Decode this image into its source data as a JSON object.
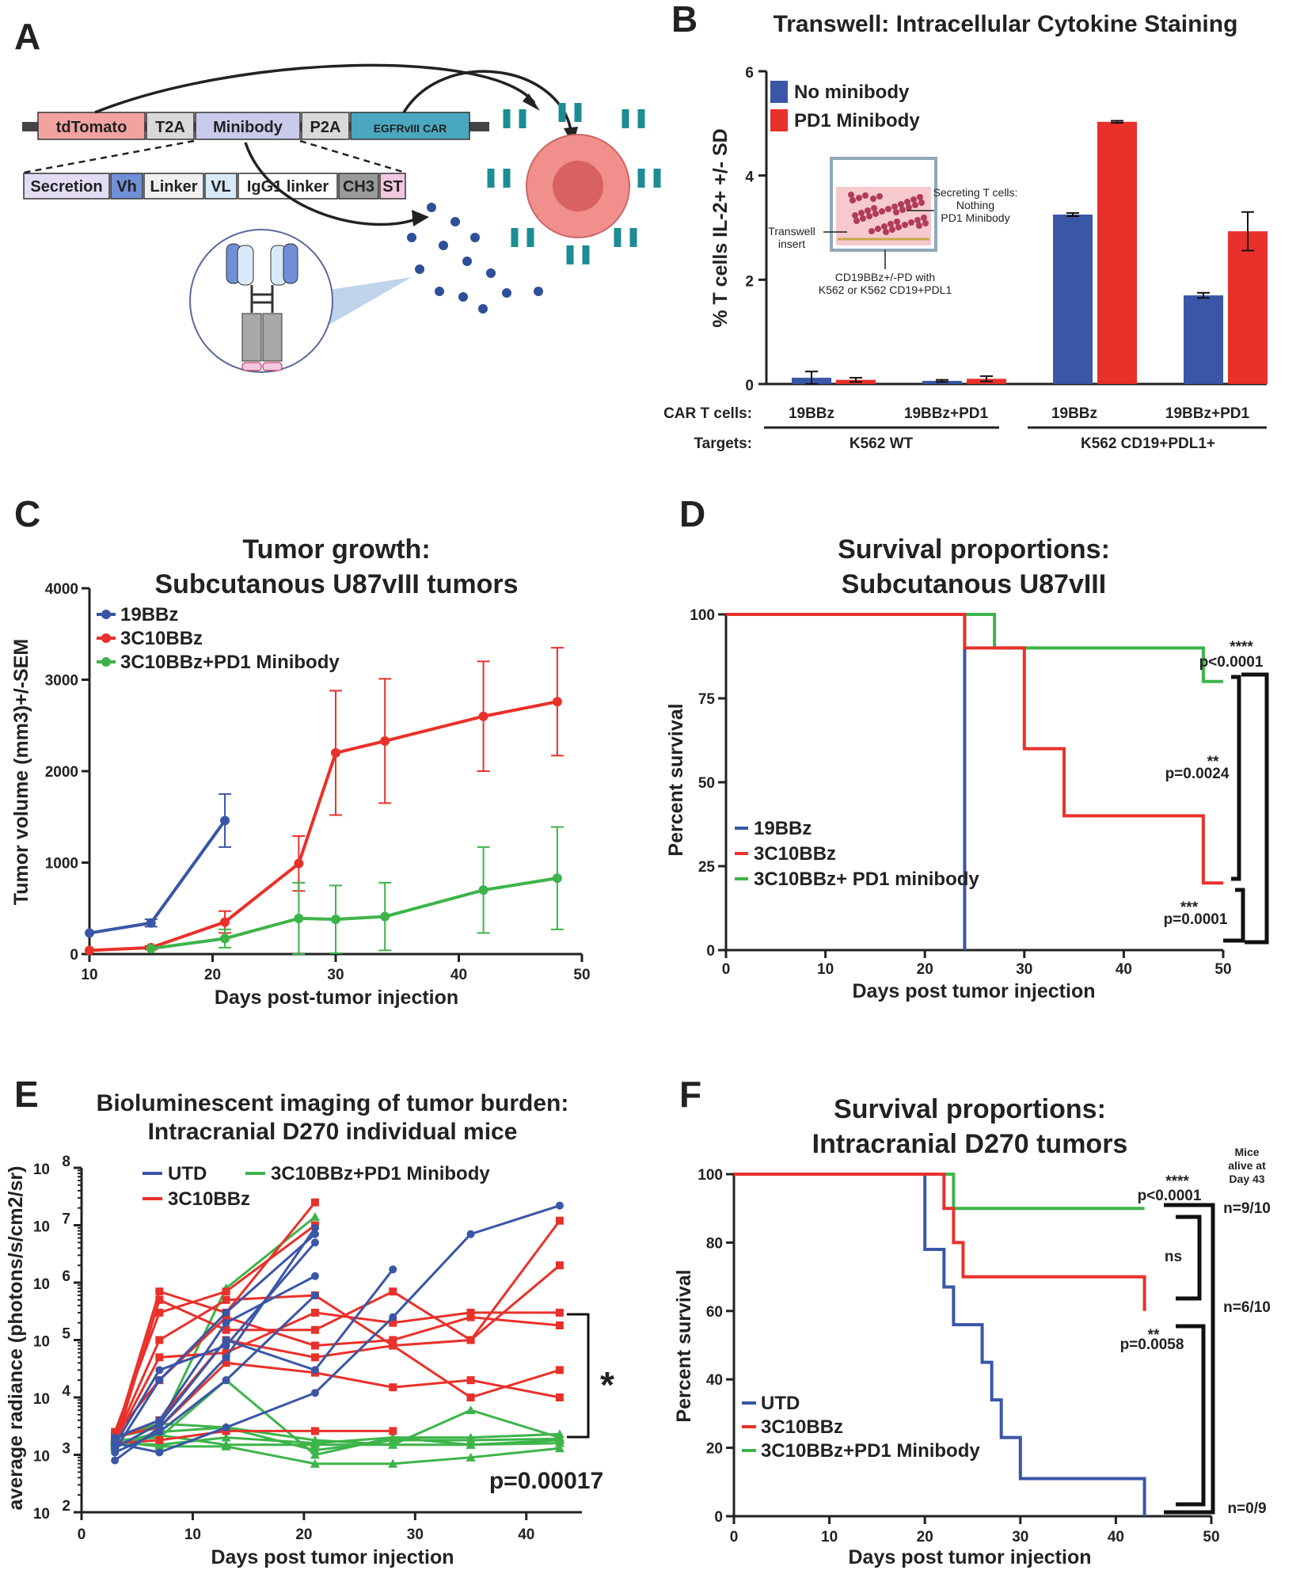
{
  "colors": {
    "blue": "#3a56a6",
    "red": "#e8312a",
    "green": "#3db44a",
    "gray": "#555555"
  },
  "panelA": {
    "label": "A",
    "construct": [
      "tdTomato",
      "T2A",
      "Minibody",
      "P2A",
      "EGFRvIII CAR"
    ],
    "minibody_parts": [
      "Secretion",
      "Vh",
      "Linker",
      "VL",
      "IgG1 linker",
      "CH3",
      "ST"
    ]
  },
  "panelB": {
    "label": "B",
    "legend": [
      "No minibody",
      "PD1 Minibody"
    ],
    "inset": {
      "insert": "Transwell\ninsert",
      "secreting": "Secreting T cells:\nNothing\nPD1 Minibody",
      "bottom": "CD19BBz+/-PD with\nK562 or K562 CD19+PDL1"
    },
    "row1_label": "CAR T cells:",
    "row2_label": "Targets:",
    "target_groups": [
      "K562 WT",
      "K562 CD19+PDL1+"
    ],
    "chart_data": {
      "type": "bar",
      "title": "Transwell: Intracellular Cytokine Staining",
      "ylabel": "% T cells IL-2+ +/- SD",
      "ylim": [
        0,
        6
      ],
      "yticks": [
        0,
        2,
        4,
        6
      ],
      "categories": [
        "19BBz",
        "19BBz+PD1",
        "19BBz",
        "19BBz+PD1"
      ],
      "series": [
        {
          "name": "No minibody",
          "values": [
            0.12,
            0.06,
            3.25,
            1.7
          ],
          "err": [
            0.12,
            0.02,
            0.03,
            0.05
          ]
        },
        {
          "name": "PD1 Minibody",
          "values": [
            0.08,
            0.1,
            5.03,
            2.93
          ],
          "err": [
            0.04,
            0.05,
            0.02,
            0.37
          ]
        }
      ]
    }
  },
  "panelC": {
    "label": "C",
    "chart_data": {
      "type": "line",
      "title": "Tumor growth:\nSubcutanous U87vIII tumors",
      "xlabel": "Days post-tumor injection",
      "ylabel": "Tumor volume (mm3)+/-SEM",
      "xlim": [
        10,
        50
      ],
      "ylim": [
        0,
        4000
      ],
      "xticks": [
        10,
        20,
        30,
        40,
        50
      ],
      "yticks": [
        0,
        1000,
        2000,
        3000,
        4000
      ],
      "series": [
        {
          "name": "19BBz",
          "x": [
            10,
            15,
            21
          ],
          "y": [
            230,
            340,
            1460
          ],
          "err": [
            0,
            40,
            290
          ]
        },
        {
          "name": "3C10BBz",
          "x": [
            10,
            15,
            21,
            27,
            30,
            34,
            42,
            48
          ],
          "y": [
            40,
            70,
            350,
            990,
            2200,
            2330,
            2600,
            2760
          ],
          "err": [
            0,
            20,
            120,
            300,
            680,
            680,
            600,
            590
          ]
        },
        {
          "name": "3C10BBz+PD1 Minibody",
          "x": [
            15,
            21,
            27,
            30,
            34,
            42,
            48
          ],
          "y": [
            60,
            170,
            390,
            380,
            410,
            700,
            830
          ],
          "err": [
            0,
            100,
            390,
            370,
            370,
            470,
            560
          ]
        }
      ]
    }
  },
  "panelD": {
    "label": "D",
    "annotations": [
      "****",
      "p<0.0001",
      "**",
      "p=0.0024",
      "***",
      "p=0.0001"
    ],
    "chart_data": {
      "type": "line",
      "title": "Survival proportions:\nSubcutanous U87vIII",
      "xlabel": "Days post tumor injection",
      "ylabel": "Percent survival",
      "xlim": [
        0,
        50
      ],
      "ylim": [
        0,
        100
      ],
      "xticks": [
        0,
        10,
        20,
        30,
        40,
        50
      ],
      "yticks": [
        0,
        25,
        50,
        75,
        100
      ],
      "series": [
        {
          "name": "19BBz",
          "x": [
            0,
            24,
            24
          ],
          "y": [
            100,
            100,
            0
          ]
        },
        {
          "name": "3C10BBz",
          "x": [
            0,
            24,
            24,
            30,
            30,
            34,
            34,
            48,
            48,
            50
          ],
          "y": [
            100,
            100,
            90,
            90,
            60,
            60,
            40,
            40,
            20,
            20
          ]
        },
        {
          "name": "3C10BBz+ PD1 minibody",
          "x": [
            0,
            24,
            24,
            27,
            27,
            48,
            48,
            50
          ],
          "y": [
            100,
            100,
            100,
            100,
            90,
            90,
            80,
            80
          ]
        }
      ]
    }
  },
  "panelE": {
    "label": "E",
    "pvalue": "p=0.00017",
    "star": "*",
    "chart_data": {
      "type": "line",
      "title": "Bioluminescent imaging of tumor burden:\nIntracranial D270 individual mice",
      "xlabel": "Days post tumor injection",
      "ylabel": "average radiance (photons/s/cm2/sr)",
      "xlim": [
        0,
        43
      ],
      "ylim": [
        100,
        100000000
      ],
      "xticks": [
        0,
        10,
        20,
        30,
        40
      ],
      "ytick_labels": [
        "10^2",
        "10^3",
        "10^4",
        "10^5",
        "10^6",
        "10^7",
        "10^8"
      ],
      "series": [
        {
          "name": "UTD",
          "mice": [
            [
              [
                3,
                800
              ],
              [
                7,
                3000
              ],
              [
                13,
                50000
              ],
              [
                21,
                9000000
              ]
            ],
            [
              [
                3,
                1200
              ],
              [
                7,
                20000
              ],
              [
                13,
                300000
              ],
              [
                21,
                7000000
              ]
            ],
            [
              [
                3,
                1500
              ],
              [
                7,
                30000
              ],
              [
                13,
                80000
              ],
              [
                21,
                5000000
              ]
            ],
            [
              [
                3,
                2000
              ],
              [
                7,
                4000
              ],
              [
                13,
                200000
              ],
              [
                21,
                1300000
              ]
            ],
            [
              [
                3,
                1100
              ],
              [
                7,
                2500
              ],
              [
                13,
                20000
              ],
              [
                21,
                600000
              ]
            ],
            [
              [
                3,
                1600
              ],
              [
                7,
                1100
              ],
              [
                13,
                3000
              ],
              [
                21,
                12000
              ],
              [
                28,
                250000
              ],
              [
                35,
                7000000
              ],
              [
                43,
                22000000
              ]
            ],
            [
              [
                3,
                1300
              ],
              [
                7,
                3500
              ],
              [
                13,
                100000
              ],
              [
                21,
                30000
              ],
              [
                28,
                1700000
              ]
            ]
          ]
        },
        {
          "name": "3C10BBz",
          "mice": [
            [
              [
                3,
                2000
              ],
              [
                7,
                700000
              ],
              [
                13,
                300000
              ],
              [
                21,
                25000000
              ]
            ],
            [
              [
                3,
                2500
              ],
              [
                7,
                300000
              ],
              [
                13,
                700000
              ],
              [
                21,
                10000000
              ]
            ],
            [
              [
                3,
                1800
              ],
              [
                7,
                100000
              ],
              [
                13,
                500000
              ],
              [
                21,
                600000
              ],
              [
                28,
                80000
              ],
              [
                35,
                100000
              ],
              [
                43,
                12000000
              ]
            ],
            [
              [
                3,
                1500
              ],
              [
                7,
                500000
              ],
              [
                13,
                150000
              ],
              [
                21,
                150000
              ],
              [
                28,
                700000
              ],
              [
                35,
                100000
              ],
              [
                43,
                2000000
              ]
            ],
            [
              [
                3,
                1700
              ],
              [
                7,
                50000
              ],
              [
                13,
                60000
              ],
              [
                21,
                300000
              ],
              [
                28,
                200000
              ],
              [
                35,
                300000
              ],
              [
                43,
                300000
              ]
            ],
            [
              [
                3,
                2200
              ],
              [
                7,
                20000
              ],
              [
                13,
                250000
              ],
              [
                21,
                80000
              ],
              [
                28,
                100000
              ],
              [
                35,
                250000
              ],
              [
                43,
                180000
              ]
            ],
            [
              [
                3,
                1900
              ],
              [
                7,
                4000
              ],
              [
                13,
                100000
              ],
              [
                21,
                50000
              ],
              [
                28,
                80000
              ],
              [
                35,
                10000
              ],
              [
                43,
                30000
              ]
            ],
            [
              [
                3,
                2100
              ],
              [
                7,
                3000
              ],
              [
                13,
                40000
              ],
              [
                21,
                27000
              ],
              [
                28,
                15000
              ],
              [
                35,
                20000
              ],
              [
                43,
                10000
              ]
            ],
            [
              [
                3,
                1600
              ],
              [
                7,
                1800
              ],
              [
                13,
                2600
              ],
              [
                21,
                2600
              ],
              [
                28,
                2600
              ]
            ]
          ]
        },
        {
          "name": "3C10BBz+PD1 Minibody",
          "mice": [
            [
              [
                3,
                2000
              ],
              [
                7,
                3000
              ],
              [
                13,
                800000
              ],
              [
                21,
                14000000
              ]
            ],
            [
              [
                3,
                1500
              ],
              [
                7,
                2500
              ],
              [
                13,
                3000
              ],
              [
                21,
                1800
              ],
              [
                28,
                1500
              ],
              [
                35,
                6000
              ],
              [
                43,
                2000
              ]
            ],
            [
              [
                3,
                1800
              ],
              [
                7,
                2000
              ],
              [
                13,
                20000
              ],
              [
                21,
                1000
              ],
              [
                28,
                2000
              ],
              [
                35,
                2000
              ],
              [
                43,
                2300
              ]
            ],
            [
              [
                3,
                1600
              ],
              [
                7,
                1500
              ],
              [
                13,
                2000
              ],
              [
                21,
                1600
              ],
              [
                28,
                2000
              ],
              [
                35,
                1500
              ],
              [
                43,
                1800
              ]
            ],
            [
              [
                3,
                1400
              ],
              [
                7,
                2200
              ],
              [
                13,
                1500
              ],
              [
                21,
                1500
              ],
              [
                28,
                1500
              ],
              [
                35,
                1500
              ],
              [
                43,
                1600
              ]
            ],
            [
              [
                3,
                1700
              ],
              [
                7,
                1400
              ],
              [
                13,
                1400
              ],
              [
                21,
                700
              ],
              [
                28,
                700
              ],
              [
                35,
                900
              ],
              [
                43,
                1300
              ]
            ],
            [
              [
                3,
                1900
              ],
              [
                7,
                3500
              ],
              [
                13,
                3000
              ],
              [
                21,
                1200
              ],
              [
                28,
                1800
              ],
              [
                35,
                1800
              ],
              [
                43,
                1900
              ]
            ]
          ]
        }
      ]
    }
  },
  "panelF": {
    "label": "F",
    "mice_header": "Mice\nalive at\nDay 43",
    "n_labels": [
      "n=9/10",
      "n=6/10",
      "n=0/9"
    ],
    "annotations": [
      "****",
      "p<0.0001",
      "ns",
      "**",
      "p=0.0058"
    ],
    "chart_data": {
      "type": "line",
      "title": "Survival proportions:\nIntracranial D270 tumors",
      "xlabel": "Days post tumor injection",
      "ylabel": "Percent survival",
      "xlim": [
        0,
        50
      ],
      "ylim": [
        0,
        100
      ],
      "xticks": [
        0,
        10,
        20,
        30,
        40,
        50
      ],
      "yticks": [
        0,
        20,
        40,
        60,
        80,
        100
      ],
      "series": [
        {
          "name": "UTD",
          "x": [
            0,
            20,
            20,
            22,
            22,
            23,
            23,
            26,
            26,
            27,
            27,
            28,
            28,
            30,
            30,
            43,
            43
          ],
          "y": [
            100,
            100,
            78,
            78,
            67,
            67,
            56,
            56,
            45,
            45,
            34,
            34,
            23,
            23,
            11,
            11,
            0
          ]
        },
        {
          "name": "3C10BBz",
          "x": [
            0,
            22,
            22,
            23,
            23,
            24,
            24,
            43,
            43
          ],
          "y": [
            100,
            100,
            90,
            90,
            80,
            80,
            70,
            70,
            60
          ]
        },
        {
          "name": "3C10BBz+PD1 Minibody",
          "x": [
            0,
            23,
            23,
            43
          ],
          "y": [
            100,
            100,
            90,
            90
          ]
        }
      ]
    }
  }
}
